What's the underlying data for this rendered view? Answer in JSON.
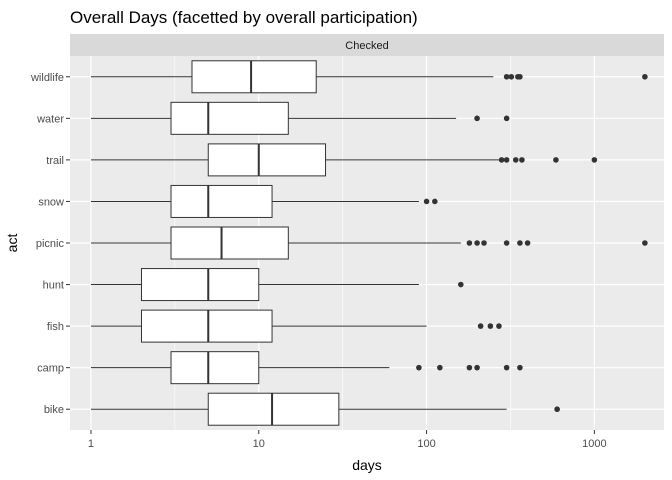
{
  "chart_data": {
    "type": "boxplot",
    "title": "Overall Days (facetted by overall participation)",
    "facet_label": "Checked",
    "xlabel": "days",
    "ylabel": "act",
    "x_scale": "log10",
    "xlim": [
      0.75,
      2600
    ],
    "x_ticks": [
      1,
      10,
      100,
      1000
    ],
    "x_tick_labels": [
      "1",
      "10",
      "100",
      "1000"
    ],
    "x_minor_ticks": [
      3.1623,
      31.623,
      316.23
    ],
    "grid": true,
    "colors": {
      "panel": "#ebebeb",
      "strip": "#d9d9d9",
      "grid": "#ffffff",
      "box_fill": "#ffffff",
      "box_line": "#333333",
      "outlier": "#333333"
    },
    "categories": [
      "wildlife",
      "water",
      "trail",
      "snow",
      "picnic",
      "hunt",
      "fish",
      "camp",
      "bike"
    ],
    "boxes": [
      {
        "category": "wildlife",
        "whisker_low": 1,
        "q1": 4,
        "median": 9,
        "q3": 22,
        "whisker_high": 250,
        "outliers": [
          300,
          320,
          350,
          360,
          2000
        ]
      },
      {
        "category": "water",
        "whisker_low": 1,
        "q1": 3,
        "median": 5,
        "q3": 15,
        "whisker_high": 150,
        "outliers": [
          200,
          300
        ]
      },
      {
        "category": "trail",
        "whisker_low": 1,
        "q1": 5,
        "median": 10,
        "q3": 25,
        "whisker_high": 270,
        "outliers": [
          280,
          300,
          340,
          370,
          590,
          1000
        ]
      },
      {
        "category": "snow",
        "whisker_low": 1,
        "q1": 3,
        "median": 5,
        "q3": 12,
        "whisker_high": 90,
        "outliers": [
          100,
          112
        ]
      },
      {
        "category": "picnic",
        "whisker_low": 1,
        "q1": 3,
        "median": 6,
        "q3": 15,
        "whisker_high": 160,
        "outliers": [
          180,
          200,
          220,
          300,
          360,
          400,
          2000
        ]
      },
      {
        "category": "hunt",
        "whisker_low": 1,
        "q1": 2,
        "median": 5,
        "q3": 10,
        "whisker_high": 90,
        "outliers": [
          160
        ]
      },
      {
        "category": "fish",
        "whisker_low": 1,
        "q1": 2,
        "median": 5,
        "q3": 12,
        "whisker_high": 100,
        "outliers": [
          210,
          240,
          270
        ]
      },
      {
        "category": "camp",
        "whisker_low": 1,
        "q1": 3,
        "median": 5,
        "q3": 10,
        "whisker_high": 60,
        "outliers": [
          90,
          120,
          180,
          200,
          300,
          360
        ]
      },
      {
        "category": "bike",
        "whisker_low": 1,
        "q1": 5,
        "median": 12,
        "q3": 30,
        "whisker_high": 300,
        "outliers": [
          600
        ]
      }
    ]
  }
}
